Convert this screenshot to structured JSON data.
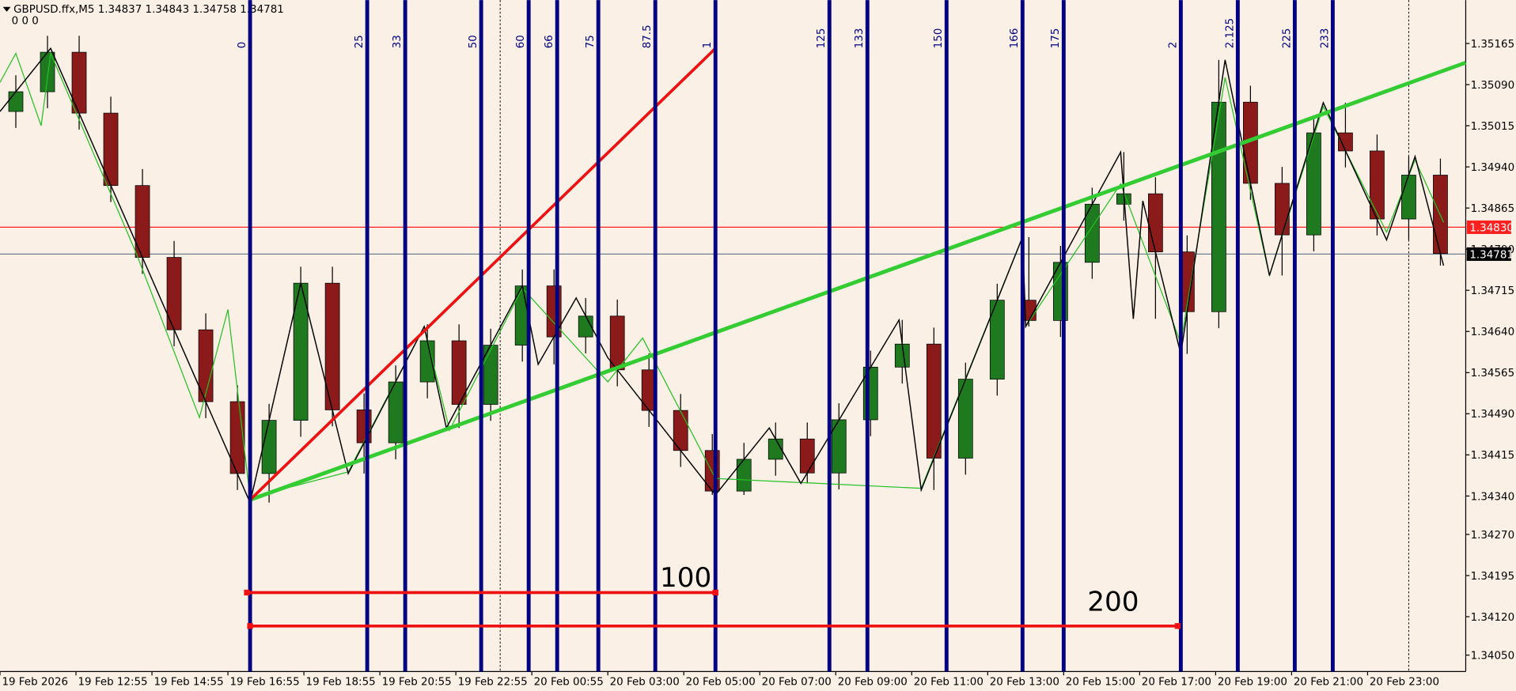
{
  "chart_data": {
    "type": "candlestick",
    "title": "GBPUSD.ffx,M5  1.34837 1.34843 1.34758 1.34781",
    "subtitle": "0  0  0",
    "xlim": [
      0,
      463
    ],
    "ylim": [
      1.3402,
      1.35244
    ],
    "xticks": [
      {
        "value": 0,
        "label": "19 Feb 2026"
      },
      {
        "value": 24,
        "label": "19 Feb 12:55"
      },
      {
        "value": 48,
        "label": "19 Feb 14:55"
      },
      {
        "value": 72,
        "label": "19 Feb 16:55"
      },
      {
        "value": 96,
        "label": "19 Feb 18:55"
      },
      {
        "value": 120,
        "label": "19 Feb 20:55"
      },
      {
        "value": 144,
        "label": "19 Feb 22:55"
      },
      {
        "value": 168,
        "label": "20 Feb 00:55"
      },
      {
        "value": 192,
        "label": "20 Feb 03:00"
      },
      {
        "value": 216,
        "label": "20 Feb 05:00"
      },
      {
        "value": 240,
        "label": "20 Feb 07:00"
      },
      {
        "value": 264,
        "label": "20 Feb 09:00"
      },
      {
        "value": 288,
        "label": "20 Feb 11:00"
      },
      {
        "value": 312,
        "label": "20 Feb 13:00"
      },
      {
        "value": 336,
        "label": "20 Feb 15:00"
      },
      {
        "value": 360,
        "label": "20 Feb 17:00"
      },
      {
        "value": 384,
        "label": "20 Feb 19:00"
      },
      {
        "value": 408,
        "label": "20 Feb 21:00"
      },
      {
        "value": 432,
        "label": "20 Feb 23:00"
      }
    ],
    "yticks": [
      1.35165,
      {
        "value": 1.3509,
        "label": "1.35090"
      },
      1.35015,
      {
        "value": 1.3494,
        "label": "1.34940"
      },
      1.34865,
      {
        "value": 1.3479,
        "label": "1.34790"
      },
      1.34715,
      {
        "value": 1.3464,
        "label": "1.34640"
      },
      1.34565,
      {
        "value": 1.3449,
        "label": "1.34490"
      },
      1.34415,
      {
        "value": 1.3434,
        "label": "1.34340"
      },
      {
        "value": 1.3427,
        "label": "1.34270"
      },
      1.34195,
      {
        "value": 1.3412,
        "label": "1.34120"
      },
      {
        "value": 1.3405,
        "label": "1.34050"
      }
    ],
    "bull_color": "#1f7a1f",
    "bear_color": "#8b1a1a",
    "candles": {
      "x": [
        5,
        15,
        25,
        35,
        45,
        55,
        65,
        75,
        85,
        95,
        105,
        115,
        125,
        135,
        145,
        155,
        165,
        175,
        185,
        195,
        205,
        215,
        225,
        235,
        245,
        255,
        265,
        275,
        285,
        295,
        305,
        315,
        325,
        335,
        345,
        355,
        365,
        375,
        385,
        395,
        405,
        415,
        425,
        435,
        445,
        455
      ],
      "open": [
        1.35041,
        1.35077,
        1.35149,
        1.35038,
        1.34906,
        1.34775,
        1.34643,
        1.34512,
        1.34381,
        1.34478,
        1.34728,
        1.34497,
        1.34437,
        1.34548,
        1.34623,
        1.34507,
        1.34615,
        1.34723,
        1.3463,
        1.34668,
        1.3457,
        1.34496,
        1.34423,
        1.34349,
        1.34407,
        1.34444,
        1.34382,
        1.34479,
        1.34575,
        1.34617,
        1.34409,
        1.34553,
        1.34697,
        1.3466,
        1.34766,
        1.34872,
        1.34891,
        1.34785,
        1.34676,
        1.35058,
        1.3491,
        1.34816,
        1.35002,
        1.34969,
        1.34845,
        1.34925
      ],
      "high": [
        1.35107,
        1.35179,
        1.35179,
        1.35068,
        1.34936,
        1.34805,
        1.34673,
        1.34542,
        1.34508,
        1.34758,
        1.34758,
        1.34527,
        1.34578,
        1.34653,
        1.34653,
        1.34645,
        1.34753,
        1.34753,
        1.34701,
        1.34698,
        1.346,
        1.34526,
        1.34453,
        1.34437,
        1.34474,
        1.34474,
        1.34509,
        1.34605,
        1.34661,
        1.34647,
        1.34583,
        1.34727,
        1.34812,
        1.34796,
        1.34902,
        1.34967,
        1.34921,
        1.34815,
        1.35135,
        1.35088,
        1.3494,
        1.35032,
        1.35057,
        1.34999,
        1.34959,
        1.34955
      ],
      "low": [
        1.35011,
        1.35047,
        1.35008,
        1.34876,
        1.34745,
        1.34613,
        1.34482,
        1.34351,
        1.34328,
        1.34448,
        1.34467,
        1.34381,
        1.34407,
        1.34518,
        1.34464,
        1.34477,
        1.34585,
        1.3458,
        1.346,
        1.3454,
        1.34466,
        1.34393,
        1.34342,
        1.34342,
        1.34377,
        1.34363,
        1.34352,
        1.34449,
        1.34545,
        1.34351,
        1.34379,
        1.34523,
        1.34649,
        1.3463,
        1.34736,
        1.34842,
        1.34663,
        1.34599,
        1.34646,
        1.3488,
        1.34742,
        1.34786,
        1.34939,
        1.34815,
        1.34807,
        1.3476
      ],
      "close": [
        1.35077,
        1.35149,
        1.35038,
        1.34906,
        1.34775,
        1.34643,
        1.34512,
        1.34381,
        1.34478,
        1.34728,
        1.34497,
        1.34437,
        1.34548,
        1.34623,
        1.34507,
        1.34615,
        1.34723,
        1.3463,
        1.34668,
        1.3457,
        1.34496,
        1.34423,
        1.34349,
        1.34407,
        1.34444,
        1.34382,
        1.34479,
        1.34575,
        1.34617,
        1.34409,
        1.34553,
        1.34697,
        1.3466,
        1.34766,
        1.34872,
        1.34891,
        1.34785,
        1.34676,
        1.35058,
        1.3491,
        1.34816,
        1.35002,
        1.34969,
        1.34845,
        1.34925,
        1.34782
      ]
    },
    "zigzag": {
      "color": "#000000",
      "x": [
        0,
        16,
        79,
        95,
        110,
        134,
        141,
        165,
        170,
        182,
        192,
        226,
        243,
        253,
        284,
        291,
        323,
        324,
        354,
        358,
        361,
        373,
        387,
        401,
        418,
        438,
        447,
        456
      ],
      "price": [
        1.35041,
        1.35156,
        1.34328,
        1.34728,
        1.34381,
        1.34649,
        1.34464,
        1.34723,
        1.3458,
        1.34701,
        1.34592,
        1.34342,
        1.34464,
        1.34363,
        1.34661,
        1.34351,
        1.34812,
        1.34649,
        1.34967,
        1.34663,
        1.34878,
        1.34599,
        1.35135,
        1.34742,
        1.35057,
        1.34807,
        1.34959,
        1.3476
      ]
    },
    "zigzag_minor": {
      "color": "#22c022",
      "x": [
        0,
        5,
        13,
        16,
        43,
        63,
        72,
        79,
        110,
        134,
        142,
        165,
        192,
        203,
        226,
        291,
        323,
        324,
        354,
        373,
        387,
        401,
        418,
        438,
        447,
        456
      ],
      "price": [
        1.35094,
        1.35147,
        1.35015,
        1.35147,
        1.34783,
        1.34483,
        1.3468,
        1.34337,
        1.34384,
        1.34649,
        1.3446,
        1.34719,
        1.34548,
        1.34628,
        1.34372,
        1.34354,
        1.34812,
        1.34649,
        1.34909,
        1.34619,
        1.35103,
        1.34742,
        1.3505,
        1.34821,
        1.34953,
        1.34839
      ]
    },
    "red_line": {
      "color": "#ee1111",
      "x": [
        79,
        226
      ],
      "price": [
        1.34333,
        1.35156
      ]
    },
    "trend_line": {
      "color": "#33cc33",
      "x": [
        79,
        463
      ],
      "price": [
        1.34333,
        1.3513
      ]
    },
    "time_lines": {
      "color": "#000080",
      "labels": [
        "0",
        "25",
        "33",
        "50",
        "60",
        "66",
        "75",
        "87.5",
        "1",
        "125",
        "133",
        "150",
        "166",
        "175",
        "2",
        "2.125",
        "225",
        "233"
      ],
      "x": [
        79,
        116,
        128,
        152,
        167,
        176,
        189,
        207,
        226,
        262,
        274,
        299,
        323,
        336,
        373,
        391,
        409,
        421
      ]
    },
    "separators": [
      158,
      445
    ],
    "measures": [
      {
        "label": "100",
        "x": [
          78,
          226
        ],
        "price": 1.34164
      },
      {
        "label": "200",
        "x": [
          79,
          372
        ],
        "price": 1.34103
      }
    ],
    "level_line": {
      "value": 1.3483,
      "label": "1.34830",
      "color": "#ff2020"
    },
    "price_line": {
      "value": 1.34781,
      "label": "1.34781",
      "color": "#708090"
    }
  }
}
